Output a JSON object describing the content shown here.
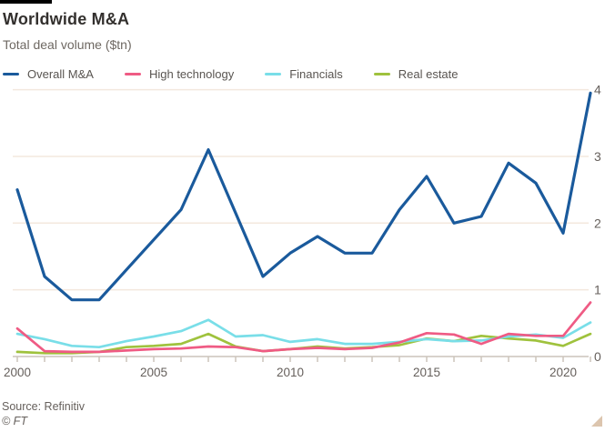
{
  "header": {
    "title": "Worldwide M&A",
    "subtitle": "Total deal volume ($tn)"
  },
  "chart_data": {
    "type": "line",
    "x": [
      2000,
      2001,
      2002,
      2003,
      2004,
      2005,
      2006,
      2007,
      2008,
      2009,
      2010,
      2011,
      2012,
      2013,
      2014,
      2015,
      2016,
      2017,
      2018,
      2019,
      2020,
      2021
    ],
    "series": [
      {
        "name": "Overall M&A",
        "color": "#1a5a9c",
        "values": [
          2.5,
          1.2,
          0.85,
          0.85,
          1.3,
          1.75,
          2.2,
          3.1,
          2.15,
          1.2,
          1.55,
          1.8,
          1.55,
          1.55,
          2.2,
          2.7,
          2.0,
          2.1,
          2.9,
          2.6,
          1.85,
          3.95
        ]
      },
      {
        "name": "High technology",
        "color": "#ef5b84",
        "values": [
          0.42,
          0.08,
          0.07,
          0.07,
          0.09,
          0.11,
          0.12,
          0.15,
          0.14,
          0.08,
          0.11,
          0.13,
          0.11,
          0.13,
          0.21,
          0.35,
          0.33,
          0.19,
          0.34,
          0.31,
          0.31,
          0.81
        ]
      },
      {
        "name": "Financials",
        "color": "#79dee8",
        "values": [
          0.34,
          0.26,
          0.16,
          0.14,
          0.23,
          0.3,
          0.38,
          0.55,
          0.3,
          0.32,
          0.22,
          0.26,
          0.19,
          0.19,
          0.22,
          0.26,
          0.23,
          0.24,
          0.3,
          0.33,
          0.28,
          0.51
        ]
      },
      {
        "name": "Real estate",
        "color": "#9fc23d",
        "values": [
          0.07,
          0.05,
          0.05,
          0.07,
          0.14,
          0.16,
          0.19,
          0.34,
          0.15,
          0.08,
          0.11,
          0.15,
          0.12,
          0.14,
          0.17,
          0.27,
          0.23,
          0.31,
          0.27,
          0.24,
          0.16,
          0.34
        ]
      }
    ],
    "title": "Worldwide M&A",
    "subtitle": "Total deal volume ($tn)",
    "xlabel": "",
    "ylabel": "",
    "ylim": [
      0,
      4
    ],
    "yticks": [
      0,
      1,
      2,
      3,
      4
    ],
    "ytick_side": "right",
    "xtick_labels": [
      "2000",
      "2005",
      "2010",
      "2015",
      "2020"
    ],
    "grid": "horizontal",
    "legend_position": "top",
    "gridline_color": "#f3e8de",
    "axis_color": "#ccc4bb",
    "tick_label_color": "#66605c"
  },
  "footer": {
    "source": "Source: Refinitiv",
    "credit": "© FT"
  }
}
